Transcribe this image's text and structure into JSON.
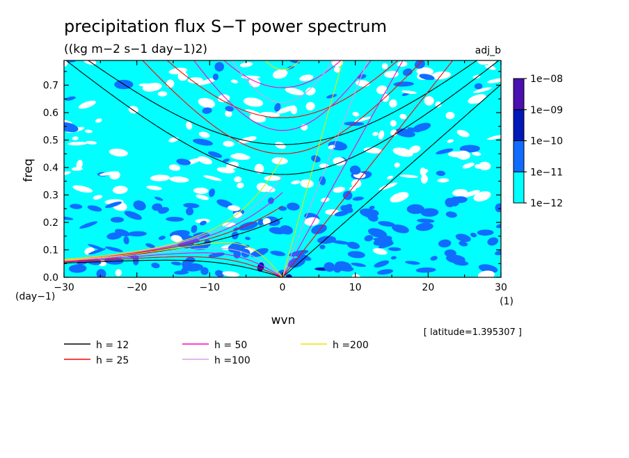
{
  "chart_data": {
    "type": "heatmap",
    "title": "precipitation flux S−T power spectrum",
    "subtitle": "((kg m−2 s−1 day−1)2)",
    "corner_label": "adj_b",
    "xlabel": "wvn",
    "ylabel": "freq",
    "x_unit": "(1)",
    "y_unit": "(day−1)",
    "xlim": [
      -30,
      30
    ],
    "ylim": [
      0,
      0.79
    ],
    "x_ticks": [
      -30,
      -20,
      -10,
      0,
      10,
      20,
      30
    ],
    "x_tick_labels": [
      "−30",
      "−20",
      "−10",
      "0",
      "10",
      "20",
      "30"
    ],
    "y_ticks": [
      0.0,
      0.1,
      0.2,
      0.3,
      0.4,
      0.5,
      0.6,
      0.7
    ],
    "y_tick_labels": [
      "0.0",
      "0.1",
      "0.2",
      "0.3",
      "0.4",
      "0.5",
      "0.6",
      "0.7"
    ],
    "latitude_note": "[ latitude=1.395307 ]",
    "colorbar": {
      "levels": [
        "1e−12",
        "1e−11",
        "1e−10",
        "1e−09",
        "1e−08"
      ],
      "colors": [
        "#00ffff",
        "#0f6cff",
        "#0018b8",
        "#4a10b0"
      ],
      "background": "#ffffff"
    },
    "background_fill": "#00ffff",
    "dispersion_curves": [
      {
        "label": "h = 12",
        "h": 12,
        "color": "#000000"
      },
      {
        "label": "h = 25",
        "h": 25,
        "color": "#ff0000"
      },
      {
        "label": "h = 50",
        "h": 50,
        "color": "#ff00c8"
      },
      {
        "label": "h =100",
        "h": 100,
        "color": "#d8a0e8"
      },
      {
        "label": "h =200",
        "h": 200,
        "color": "#f0e000"
      }
    ]
  }
}
